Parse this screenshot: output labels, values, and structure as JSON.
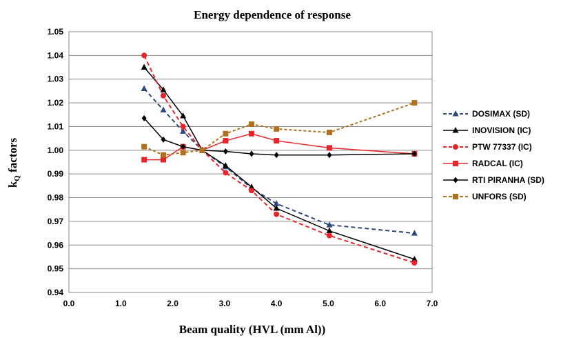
{
  "chart_data": {
    "type": "line",
    "title": "Energy dependence of response",
    "xlabel": "Beam quality (HVL (mm Al))",
    "ylabel": "kQ factors",
    "ylabel_main": "k",
    "ylabel_sub": "Q",
    "ylabel_rest": " factors",
    "xlim": [
      0.0,
      7.0
    ],
    "ylim": [
      0.94,
      1.05
    ],
    "x_ticks": [
      "0.0",
      "1.0",
      "2.0",
      "3.0",
      "4.0",
      "5.0",
      "6.0",
      "7.0"
    ],
    "y_ticks": [
      "0.94",
      "0.95",
      "0.96",
      "0.97",
      "0.98",
      "0.99",
      "1.00",
      "1.01",
      "1.02",
      "1.03",
      "1.04",
      "1.05"
    ],
    "grid": "horizontal",
    "legend_position": "right",
    "series": [
      {
        "name": "DOSIMAX (SD)",
        "color": "#2E4A7A",
        "dash": "dashed",
        "marker": "triangle",
        "x": [
          1.45,
          1.82,
          2.2,
          2.57,
          3.02,
          3.52,
          4.0,
          5.02,
          6.66
        ],
        "y": [
          1.026,
          1.017,
          1.008,
          1.0,
          0.993,
          0.984,
          0.9775,
          0.9685,
          0.965
        ]
      },
      {
        "name": "INOVISION (IC)",
        "color": "#000000",
        "dash": "solid",
        "marker": "triangle",
        "x": [
          1.45,
          1.82,
          2.2,
          2.57,
          3.02,
          3.52,
          4.0,
          5.02,
          6.66
        ],
        "y": [
          1.035,
          1.0255,
          1.0145,
          1.0,
          0.9935,
          0.9845,
          0.9755,
          0.966,
          0.954
        ]
      },
      {
        "name": "PTW 77337 (IC)",
        "color": "#E8242A",
        "dash": "dashed",
        "marker": "circle",
        "x": [
          1.45,
          1.82,
          2.2,
          2.57,
          3.02,
          3.52,
          4.0,
          5.02,
          6.66
        ],
        "y": [
          1.04,
          1.023,
          1.01,
          1.0,
          0.9905,
          0.983,
          0.973,
          0.964,
          0.9525
        ]
      },
      {
        "name": "RADCAL (IC)",
        "color": "#E8242A",
        "dash": "solid",
        "marker": "square",
        "x": [
          1.45,
          1.82,
          2.2,
          2.57,
          3.02,
          3.52,
          4.0,
          5.02,
          6.66
        ],
        "y": [
          0.996,
          0.996,
          1.0015,
          1.0,
          1.004,
          1.007,
          1.004,
          1.001,
          0.9985
        ]
      },
      {
        "name": "RTI  PIRANHA (SD)",
        "color": "#000000",
        "dash": "solid",
        "marker": "diamond",
        "x": [
          1.45,
          1.82,
          2.2,
          2.57,
          3.02,
          3.52,
          4.0,
          5.02,
          6.66
        ],
        "y": [
          1.0135,
          1.0045,
          1.0015,
          1.0,
          0.9995,
          0.9985,
          0.998,
          0.998,
          0.9985
        ]
      },
      {
        "name": "UNFORS (SD)",
        "color": "#B0701E",
        "dash": "dashed",
        "marker": "square",
        "x": [
          1.45,
          1.82,
          2.2,
          2.57,
          3.02,
          3.52,
          4.0,
          5.02,
          6.66
        ],
        "y": [
          1.0015,
          0.998,
          0.999,
          1.0,
          1.007,
          1.011,
          1.009,
          1.0075,
          1.02
        ]
      }
    ]
  }
}
